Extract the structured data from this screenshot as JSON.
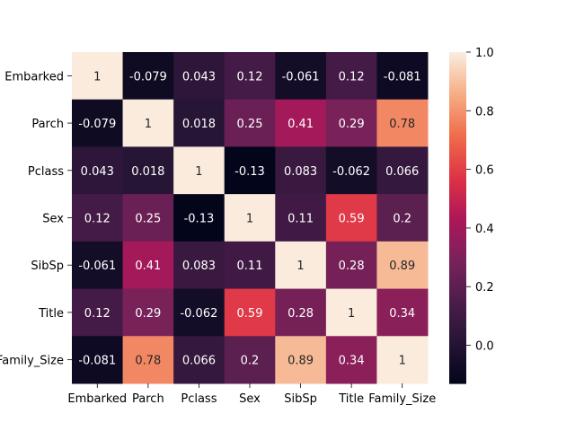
{
  "chart_data": {
    "type": "heatmap",
    "title": "",
    "xlabel": "",
    "ylabel": "",
    "rows": [
      "Embarked",
      "Parch",
      "Pclass",
      "Sex",
      "SibSp",
      "Title",
      "Family_Size"
    ],
    "columns": [
      "Embarked",
      "Parch",
      "Pclass",
      "Sex",
      "SibSp",
      "Title",
      "Family_Size"
    ],
    "values": [
      [
        1,
        -0.079,
        0.043,
        0.12,
        -0.061,
        0.12,
        -0.081
      ],
      [
        -0.079,
        1,
        0.018,
        0.25,
        0.41,
        0.29,
        0.78
      ],
      [
        0.043,
        0.018,
        1,
        -0.13,
        0.083,
        -0.062,
        0.066
      ],
      [
        0.12,
        0.25,
        -0.13,
        1,
        0.11,
        0.59,
        0.2
      ],
      [
        -0.061,
        0.41,
        0.083,
        0.11,
        1,
        0.28,
        0.89
      ],
      [
        0.12,
        0.29,
        -0.062,
        0.59,
        0.28,
        1,
        0.34
      ],
      [
        -0.081,
        0.78,
        0.066,
        0.2,
        0.89,
        0.34,
        1
      ]
    ],
    "value_labels": [
      [
        "1",
        "-0.079",
        "0.043",
        "0.12",
        "-0.061",
        "0.12",
        "-0.081"
      ],
      [
        "-0.079",
        "1",
        "0.018",
        "0.25",
        "0.41",
        "0.29",
        "0.78"
      ],
      [
        "0.043",
        "0.018",
        "1",
        "-0.13",
        "0.083",
        "-0.062",
        "0.066"
      ],
      [
        "0.12",
        "0.25",
        "-0.13",
        "1",
        "0.11",
        "0.59",
        "0.2"
      ],
      [
        "-0.061",
        "0.41",
        "0.083",
        "0.11",
        "1",
        "0.28",
        "0.89"
      ],
      [
        "0.12",
        "0.29",
        "-0.062",
        "0.59",
        "0.28",
        "1",
        "0.34"
      ],
      [
        "-0.081",
        "0.78",
        "0.066",
        "0.2",
        "0.89",
        "0.34",
        "1"
      ]
    ],
    "colormap": "rocket",
    "vmin": -0.13,
    "vmax": 1.0,
    "colorbar_ticks": [
      0.0,
      0.2,
      0.4,
      0.6,
      0.8,
      1.0
    ],
    "colorbar_tick_labels": [
      "0.0",
      "0.2",
      "0.4",
      "0.6",
      "0.8",
      "1.0"
    ],
    "annotate": true,
    "grid": false,
    "colorbar_position": "right"
  }
}
